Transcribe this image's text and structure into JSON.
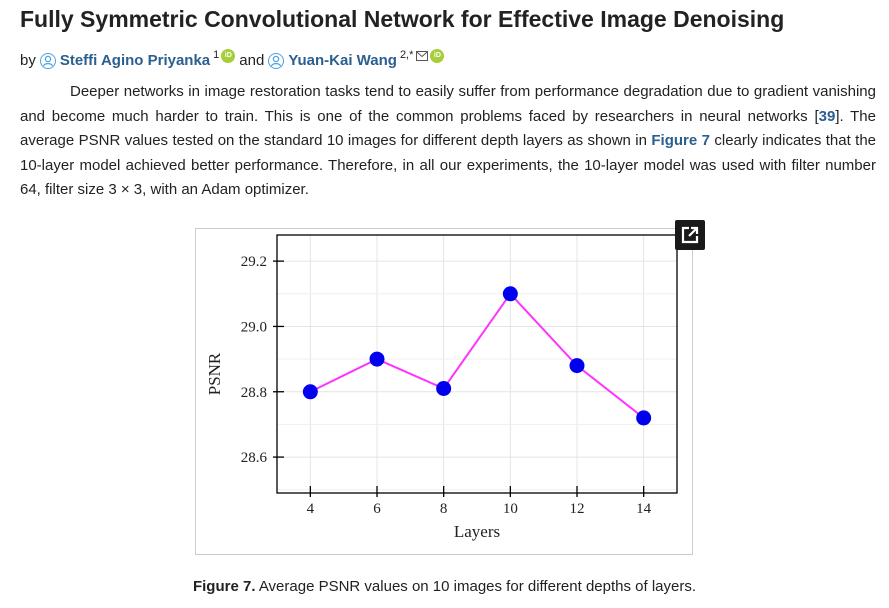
{
  "article": {
    "title": "Fully Symmetric Convolutional Network for Effective Image Denoising",
    "by_label": "by",
    "and_label": "and",
    "authors": [
      {
        "name": "Steffi Agino Priyanka",
        "affiliation": "1"
      },
      {
        "name": "Yuan-Kai Wang",
        "affiliation": "2,*"
      }
    ],
    "orcid_label": "iD"
  },
  "paragraph": {
    "part1": "Deeper networks in image restoration tasks tend to easily suffer from performance degradation due to gradient vanishing and become much harder to train. This is one of the common problems faced by researchers in neural networks [",
    "ref": "39",
    "part2": "]. The average PSNR values tested on the standard 10 images for different depth layers as shown in ",
    "figure_link": "Figure 7",
    "part3": " clearly indicates that the 10-layer model achieved better performance. Therefore, in all our experiments, the 10-layer model was used with filter number 64, filter size 3 × 3, with an Adam optimizer."
  },
  "caption": {
    "label": "Figure 7.",
    "text": " Average PSNR values on 10 images for different depths of layers."
  },
  "chart_data": {
    "type": "line",
    "title": "",
    "xlabel": "Layers",
    "ylabel": "PSNR",
    "x": [
      4,
      6,
      8,
      10,
      12,
      14
    ],
    "series": [
      {
        "values": [
          28.8,
          28.9,
          28.81,
          29.1,
          28.88,
          28.72
        ]
      }
    ],
    "xticks": [
      "4",
      "6",
      "8",
      "10",
      "12",
      "14"
    ],
    "yticks": [
      "28.6",
      "28.8",
      "29.0",
      "29.2"
    ],
    "ytick_values": [
      28.6,
      28.8,
      29.0,
      29.2
    ],
    "xlim": [
      3,
      15
    ],
    "ylim": [
      28.49,
      29.28
    ],
    "grid": true,
    "line_color": "#ff33ff",
    "marker_color": "#0000ee"
  }
}
